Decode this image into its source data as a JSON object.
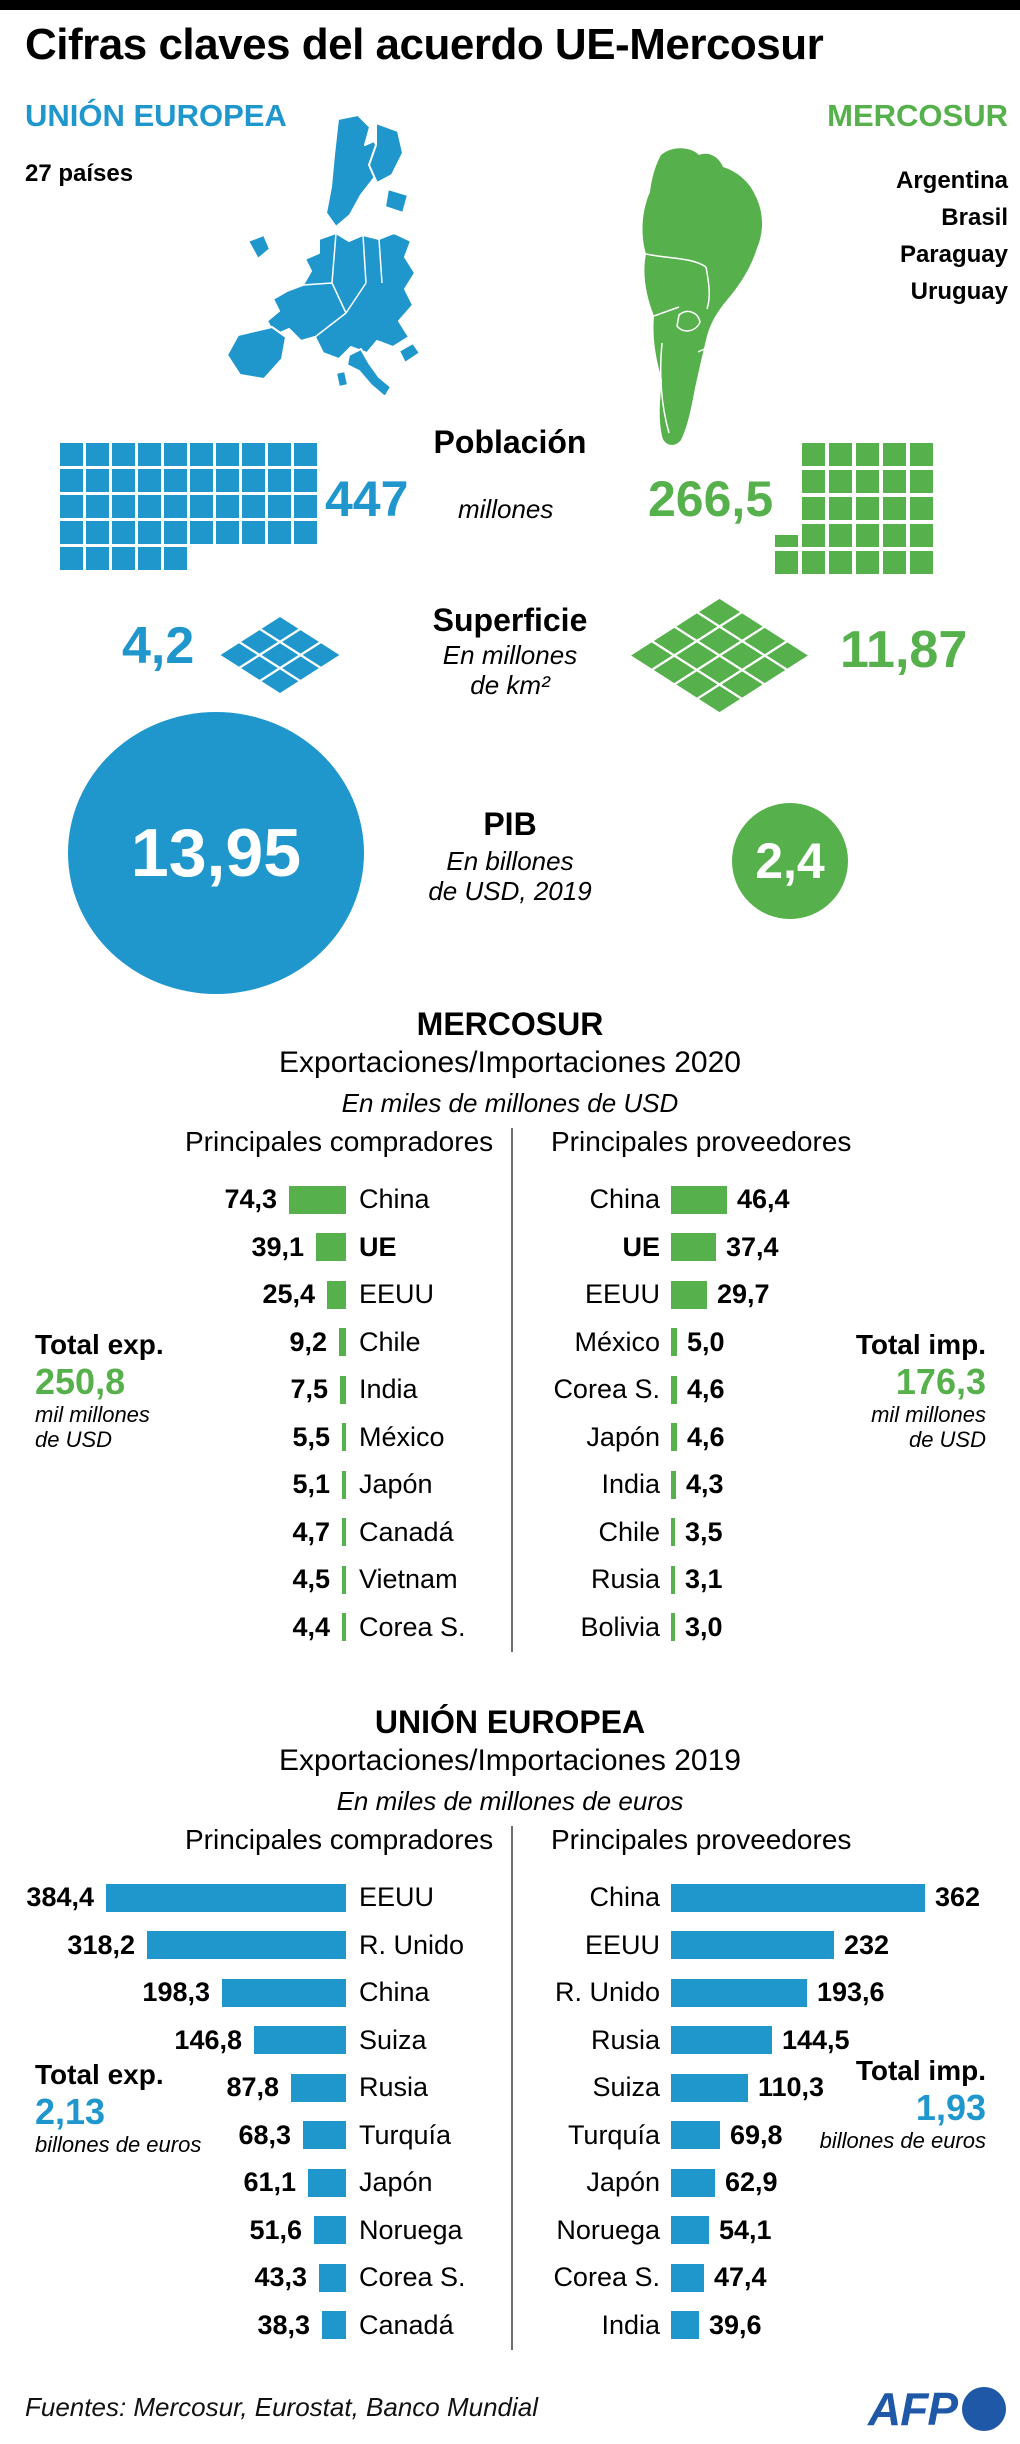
{
  "title": "Cifras claves del acuerdo UE-Mercosur",
  "colors": {
    "blue": "#1f97cd",
    "green": "#56b14c",
    "afp_blue": "#2058a8",
    "divider": "#6e6e6e"
  },
  "header": {
    "eu_label": "UNIÓN EUROPEA",
    "eu_countries_count": "27 países",
    "mercosur_label": "MERCOSUR",
    "mercosur_countries": [
      "Argentina",
      "Brasil",
      "Paraguay",
      "Uruguay"
    ]
  },
  "chart_data": [
    {
      "type": "pictogram-waffle",
      "title": "Población",
      "unit_label": "millones",
      "series": [
        {
          "name": "Unión Europea",
          "value": 447,
          "display": "447",
          "color": "blue",
          "squares_full": 45,
          "squares_partial": 0
        },
        {
          "name": "Mercosur",
          "value": 266.5,
          "display": "266,5",
          "color": "green",
          "squares_full": 26,
          "squares_partial": 0.5
        }
      ]
    },
    {
      "type": "pictogram-diamond",
      "title": "Superficie",
      "unit_label_lines": [
        "En millones",
        "de km²"
      ],
      "series": [
        {
          "name": "Unión Europea",
          "value": 4.2,
          "display": "4,2",
          "color": "blue",
          "grid": 3
        },
        {
          "name": "Mercosur",
          "value": 11.87,
          "display": "11,87",
          "color": "green",
          "grid": 4
        }
      ]
    },
    {
      "type": "proportional-circle",
      "title": "PIB",
      "unit_label_lines": [
        "En billones",
        "de USD, 2019"
      ],
      "series": [
        {
          "name": "Unión Europea",
          "value": 13.95,
          "display": "13,95",
          "color": "blue"
        },
        {
          "name": "Mercosur",
          "value": 2.4,
          "display": "2,4",
          "color": "green"
        }
      ]
    },
    {
      "type": "bar",
      "title": "MERCOSUR",
      "subtitle": "Exportaciones/Importaciones 2020",
      "unit_label": "En miles de millones de USD",
      "color": "green",
      "left": {
        "header": "Principales compradores",
        "rows": [
          {
            "label": "China",
            "value": 74.3,
            "display": "74,3"
          },
          {
            "label": "UE",
            "value": 39.1,
            "display": "39,1",
            "bold": true
          },
          {
            "label": "EEUU",
            "value": 25.4,
            "display": "25,4"
          },
          {
            "label": "Chile",
            "value": 9.2,
            "display": "9,2"
          },
          {
            "label": "India",
            "value": 7.5,
            "display": "7,5"
          },
          {
            "label": "México",
            "value": 5.5,
            "display": "5,5"
          },
          {
            "label": "Japón",
            "value": 5.1,
            "display": "5,1"
          },
          {
            "label": "Canadá",
            "value": 4.7,
            "display": "4,7"
          },
          {
            "label": "Vietnam",
            "value": 4.5,
            "display": "4,5"
          },
          {
            "label": "Corea S.",
            "value": 4.4,
            "display": "4,4"
          }
        ],
        "total": {
          "label": "Total exp.",
          "display": "250,8",
          "unit_lines": [
            "mil millones",
            "de USD"
          ]
        }
      },
      "right": {
        "header": "Principales proveedores",
        "rows": [
          {
            "label": "China",
            "value": 46.4,
            "display": "46,4"
          },
          {
            "label": "UE",
            "value": 37.4,
            "display": "37,4",
            "bold": true
          },
          {
            "label": "EEUU",
            "value": 29.7,
            "display": "29,7"
          },
          {
            "label": "México",
            "value": 5.0,
            "display": "5,0"
          },
          {
            "label": "Corea S.",
            "value": 4.6,
            "display": "4,6"
          },
          {
            "label": "Japón",
            "value": 4.6,
            "display": "4,6"
          },
          {
            "label": "India",
            "value": 4.3,
            "display": "4,3"
          },
          {
            "label": "Chile",
            "value": 3.5,
            "display": "3,5"
          },
          {
            "label": "Rusia",
            "value": 3.1,
            "display": "3,1"
          },
          {
            "label": "Bolivia",
            "value": 3.0,
            "display": "3,0"
          }
        ],
        "total": {
          "label": "Total imp.",
          "display": "176,3",
          "unit_lines": [
            "mil millones",
            "de USD"
          ]
        }
      }
    },
    {
      "type": "bar",
      "title": "UNIÓN EUROPEA",
      "subtitle": "Exportaciones/Importaciones 2019",
      "unit_label": "En miles de millones de euros",
      "color": "blue",
      "left": {
        "header": "Principales compradores",
        "rows": [
          {
            "label": "EEUU",
            "value": 384.4,
            "display": "384,4"
          },
          {
            "label": "R. Unido",
            "value": 318.2,
            "display": "318,2"
          },
          {
            "label": "China",
            "value": 198.3,
            "display": "198,3"
          },
          {
            "label": "Suiza",
            "value": 146.8,
            "display": "146,8"
          },
          {
            "label": "Rusia",
            "value": 87.8,
            "display": "87,8"
          },
          {
            "label": "Turquía",
            "value": 68.3,
            "display": "68,3"
          },
          {
            "label": "Japón",
            "value": 61.1,
            "display": "61,1"
          },
          {
            "label": "Noruega",
            "value": 51.6,
            "display": "51,6"
          },
          {
            "label": "Corea S.",
            "value": 43.3,
            "display": "43,3"
          },
          {
            "label": "Canadá",
            "value": 38.3,
            "display": "38,3"
          }
        ],
        "total": {
          "label": "Total exp.",
          "display": "2,13",
          "unit_lines": [
            "billones de euros"
          ]
        }
      },
      "right": {
        "header": "Principales proveedores",
        "rows": [
          {
            "label": "China",
            "value": 362,
            "display": "362"
          },
          {
            "label": "EEUU",
            "value": 232,
            "display": "232"
          },
          {
            "label": "R. Unido",
            "value": 193.6,
            "display": "193,6"
          },
          {
            "label": "Rusia",
            "value": 144.5,
            "display": "144,5"
          },
          {
            "label": "Suiza",
            "value": 110.3,
            "display": "110,3"
          },
          {
            "label": "Turquía",
            "value": 69.8,
            "display": "69,8"
          },
          {
            "label": "Japón",
            "value": 62.9,
            "display": "62,9"
          },
          {
            "label": "Noruega",
            "value": 54.1,
            "display": "54,1"
          },
          {
            "label": "Corea S.",
            "value": 47.4,
            "display": "47,4"
          },
          {
            "label": "India",
            "value": 39.6,
            "display": "39,6"
          }
        ],
        "total": {
          "label": "Total imp.",
          "display": "1,93",
          "unit_lines": [
            "billones de euros"
          ]
        }
      }
    }
  ],
  "footer": {
    "sources": "Fuentes: Mercosur, Eurostat, Banco Mundial",
    "logo": "AFP"
  }
}
